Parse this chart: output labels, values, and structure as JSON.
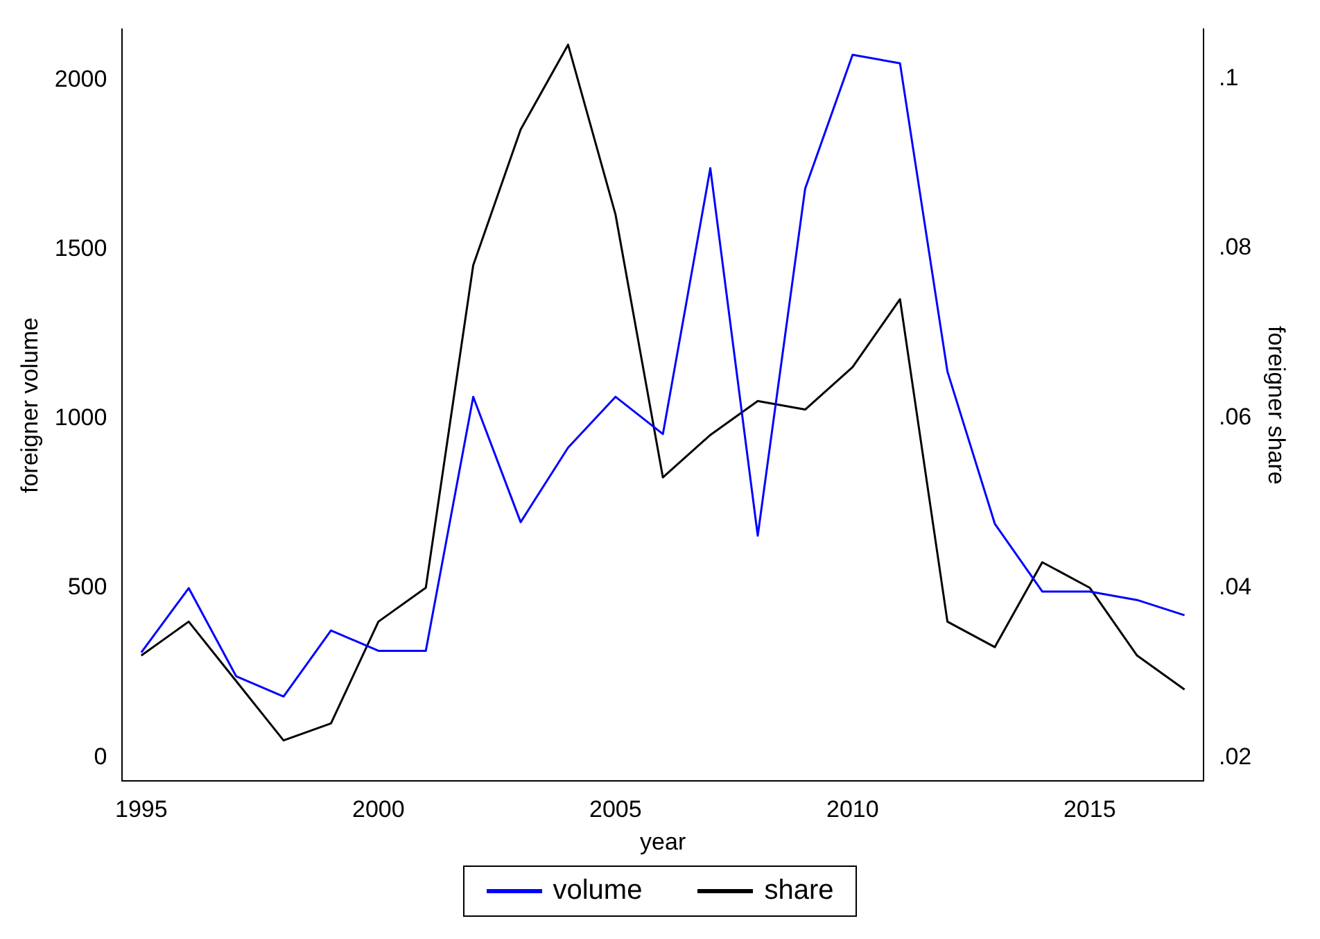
{
  "chart_data": {
    "type": "line",
    "xlabel": "year",
    "ylabel": "foreigner volume",
    "y2label": "foreigner share",
    "x": [
      1995,
      1996,
      1997,
      1998,
      1999,
      2000,
      2001,
      2002,
      2003,
      2004,
      2005,
      2006,
      2007,
      2008,
      2009,
      2010,
      2011,
      2012,
      2013,
      2014,
      2015,
      2016,
      2017
    ],
    "series": [
      {
        "name": "volume",
        "color": "#0000ff",
        "values": [
          310,
          500,
          240,
          180,
          375,
          315,
          315,
          1065,
          695,
          915,
          1065,
          955,
          1740,
          655,
          1680,
          2075,
          2050,
          1140,
          690,
          490,
          490,
          465,
          420
        ]
      },
      {
        "name": "share",
        "color": "#000000",
        "axis": "y2",
        "values": [
          0.032,
          0.036,
          0.029,
          0.022,
          0.024,
          0.036,
          0.04,
          0.078,
          0.094,
          0.104,
          0.084,
          0.053,
          0.058,
          0.062,
          0.061,
          0.066,
          0.074,
          0.036,
          0.033,
          0.043,
          0.04,
          0.032,
          0.028
        ]
      }
    ],
    "xlim": [
      1994.6,
      2017.4
    ],
    "xticks": [
      1995,
      2000,
      2005,
      2010,
      2015
    ],
    "ylim": [
      -70,
      2150
    ],
    "yticks": [
      0,
      500,
      1000,
      1500,
      2000
    ],
    "y2lim": [
      0.0172,
      0.1058
    ],
    "y2ticks": [
      {
        "value": 0.02,
        "label": ".02"
      },
      {
        "value": 0.04,
        "label": ".04"
      },
      {
        "value": 0.06,
        "label": ".06"
      },
      {
        "value": 0.08,
        "label": ".08"
      },
      {
        "value": 0.1,
        "label": ".1"
      }
    ],
    "grid": false,
    "legend": "bottom",
    "marker": "none",
    "line_style": "solid"
  }
}
